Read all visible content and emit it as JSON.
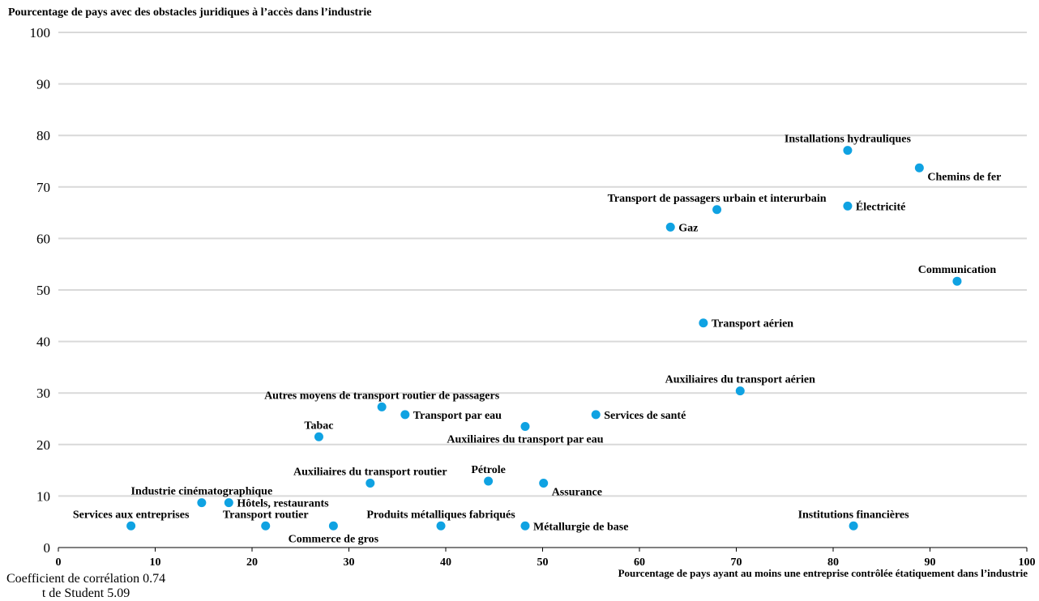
{
  "chart_data": {
    "type": "scatter",
    "ylabel": "Pourcentage de pays avec des obstacles juridiques à l’accès dans l’industrie",
    "xlabel": "Pourcentage de pays ayant au moins une entreprise contrôlée étatiquement dans l’industrie",
    "xlim": [
      0,
      100
    ],
    "ylim": [
      0,
      100
    ],
    "xticks": [
      0,
      10,
      20,
      30,
      40,
      50,
      60,
      70,
      80,
      90,
      100
    ],
    "yticks": [
      0,
      10,
      20,
      30,
      40,
      50,
      60,
      70,
      80,
      90,
      100
    ],
    "grid": "horizontal",
    "point_color": "#0fa2e2",
    "points": [
      {
        "label": "Installations hydrauliques",
        "x": 81.5,
        "y": 77.1,
        "pos": "above"
      },
      {
        "label": "Chemins de fer",
        "x": 88.9,
        "y": 73.7,
        "pos": "below-right"
      },
      {
        "label": "Transport de passagers urbain et interurbain",
        "x": 68.0,
        "y": 65.6,
        "pos": "above"
      },
      {
        "label": "Électricité",
        "x": 81.5,
        "y": 66.3,
        "pos": "right"
      },
      {
        "label": "Gaz",
        "x": 63.2,
        "y": 62.2,
        "pos": "right"
      },
      {
        "label": "Communication",
        "x": 92.8,
        "y": 51.7,
        "pos": "above"
      },
      {
        "label": "Transport aérien",
        "x": 66.6,
        "y": 43.6,
        "pos": "right"
      },
      {
        "label": "Auxiliaires du transport aérien",
        "x": 70.4,
        "y": 30.4,
        "pos": "above"
      },
      {
        "label": "Autres moyens de transport routier de passagers",
        "x": 33.4,
        "y": 27.3,
        "pos": "above"
      },
      {
        "label": "Transport par eau",
        "x": 35.8,
        "y": 25.8,
        "pos": "right"
      },
      {
        "label": "Services de santé",
        "x": 55.5,
        "y": 25.8,
        "pos": "right"
      },
      {
        "label": "Auxiliaires du transport par eau",
        "x": 48.2,
        "y": 23.5,
        "pos": "below"
      },
      {
        "label": "Tabac",
        "x": 26.9,
        "y": 21.5,
        "pos": "above"
      },
      {
        "label": "Auxiliaires du transport routier",
        "x": 32.2,
        "y": 12.5,
        "pos": "above"
      },
      {
        "label": "Pétrole",
        "x": 44.4,
        "y": 12.9,
        "pos": "above"
      },
      {
        "label": "Assurance",
        "x": 50.1,
        "y": 12.5,
        "pos": "below-right"
      },
      {
        "label": "Industrie cinématographique",
        "x": 14.8,
        "y": 8.7,
        "pos": "above"
      },
      {
        "label": "Hôtels, restaurants",
        "x": 17.6,
        "y": 8.7,
        "pos": "right"
      },
      {
        "label": "Services aux entreprises",
        "x": 7.5,
        "y": 4.2,
        "pos": "above"
      },
      {
        "label": "Transport routier",
        "x": 21.4,
        "y": 4.2,
        "pos": "above"
      },
      {
        "label": "Commerce de gros",
        "x": 28.4,
        "y": 4.2,
        "pos": "below"
      },
      {
        "label": "Produits métalliques fabriqués",
        "x": 39.5,
        "y": 4.2,
        "pos": "above"
      },
      {
        "label": "Métallurgie de base",
        "x": 48.2,
        "y": 4.2,
        "pos": "right"
      },
      {
        "label": "Institutions financières",
        "x": 82.1,
        "y": 4.2,
        "pos": "above"
      }
    ]
  },
  "stats": {
    "line1": "Coefficient de corrélation 0.74",
    "line2": "t de Student 5.09"
  }
}
